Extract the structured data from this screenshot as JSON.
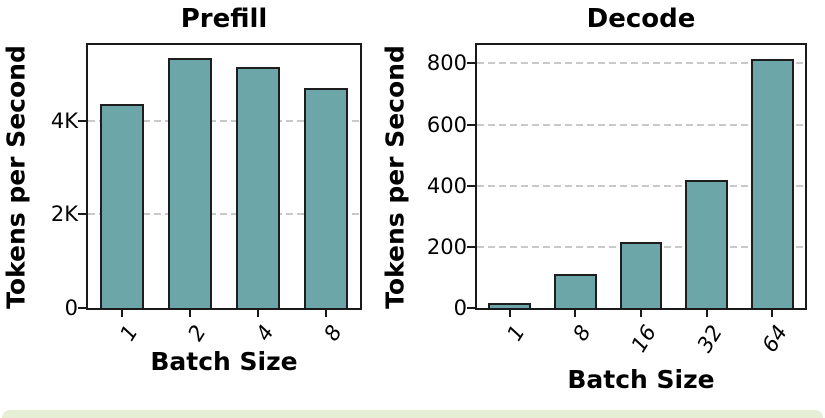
{
  "chart_data": [
    {
      "type": "bar",
      "title": "Prefill",
      "xlabel": "Batch Size",
      "ylabel": "Tokens per Second",
      "categories": [
        "1",
        "2",
        "4",
        "8"
      ],
      "values": [
        4350,
        5350,
        5150,
        4700
      ],
      "ylim": [
        0,
        5620
      ],
      "yticks": [
        {
          "value": 0,
          "label": "0"
        },
        {
          "value": 2000,
          "label": "2K"
        },
        {
          "value": 4000,
          "label": "4K"
        }
      ],
      "grid": {
        "axis": "y",
        "style": "dashed",
        "color": "#c9c9c9"
      },
      "legend": "none",
      "bar_color": "#6da6a8",
      "bar_edge_color": "#1d1d1d"
    },
    {
      "type": "bar",
      "title": "Decode",
      "xlabel": "Batch Size",
      "ylabel": "Tokens per Second",
      "categories": [
        "1",
        "8",
        "16",
        "32",
        "64"
      ],
      "values": [
        15,
        110,
        215,
        420,
        815
      ],
      "ylim": [
        0,
        860
      ],
      "yticks": [
        {
          "value": 0,
          "label": "0"
        },
        {
          "value": 200,
          "label": "200"
        },
        {
          "value": 400,
          "label": "400"
        },
        {
          "value": 600,
          "label": "600"
        },
        {
          "value": 800,
          "label": "800"
        }
      ],
      "grid": {
        "axis": "y",
        "style": "dashed",
        "color": "#c9c9c9"
      },
      "legend": "none",
      "bar_color": "#6da6a8",
      "bar_edge_color": "#1d1d1d"
    }
  ],
  "footer": {
    "color": "#e6eed5"
  }
}
